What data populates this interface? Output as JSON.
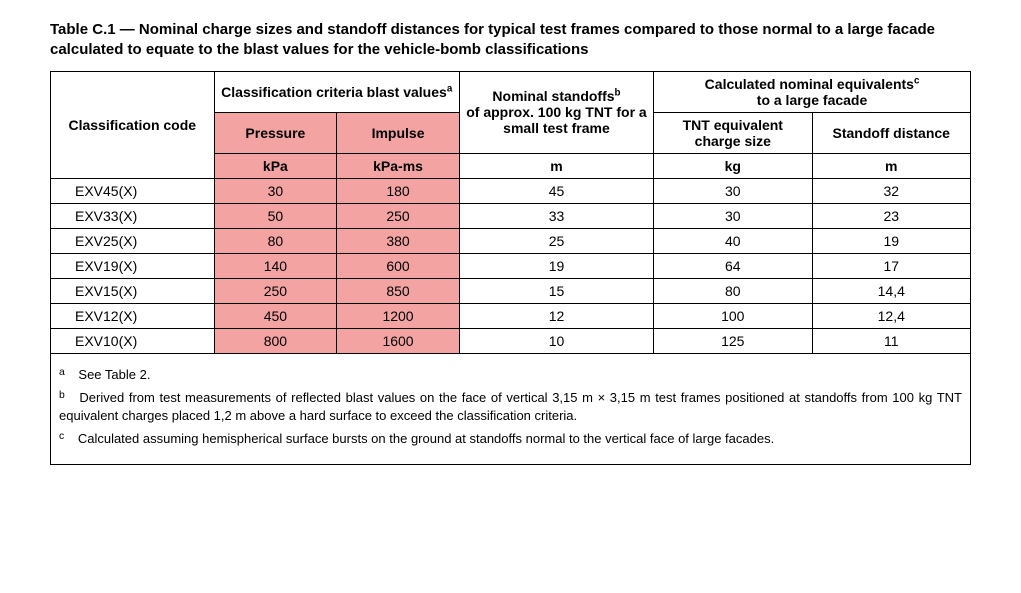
{
  "title": "Table C.1 — Nominal charge sizes and standoff distances for typical test frames compared to those normal to a large facade calculated to equate to the blast values for the vehicle-bomb classifications",
  "headers": {
    "classification_code": "Classification code",
    "criteria_group": "Classification criteria blast values",
    "criteria_sup": "a",
    "pressure": "Pressure",
    "impulse": "Impulse",
    "nominal_standoffs_l1": "Nominal standoffs",
    "nominal_standoffs_sup": "b",
    "nominal_standoffs_l2": "of approx. 100 kg TNT for a small test frame",
    "calc_equiv_group": "Calculated nominal equivalents",
    "calc_equiv_sup": "c",
    "calc_equiv_group_l2": "to a large facade",
    "tnt_equiv": "TNT equivalent charge size",
    "standoff_distance": "Standoff distance"
  },
  "units": {
    "pressure": "kPa",
    "impulse": "kPa-ms",
    "standoff": "m",
    "tnt": "kg",
    "dist": "m"
  },
  "rows": [
    {
      "code": "EXV45(X)",
      "pressure": "30",
      "impulse": "180",
      "standoff": "45",
      "tnt": "30",
      "dist": "32"
    },
    {
      "code": "EXV33(X)",
      "pressure": "50",
      "impulse": "250",
      "standoff": "33",
      "tnt": "30",
      "dist": "23"
    },
    {
      "code": "EXV25(X)",
      "pressure": "80",
      "impulse": "380",
      "standoff": "25",
      "tnt": "40",
      "dist": "19"
    },
    {
      "code": "EXV19(X)",
      "pressure": "140",
      "impulse": "600",
      "standoff": "19",
      "tnt": "64",
      "dist": "17"
    },
    {
      "code": "EXV15(X)",
      "pressure": "250",
      "impulse": "850",
      "standoff": "15",
      "tnt": "80",
      "dist": "14,4"
    },
    {
      "code": "EXV12(X)",
      "pressure": "450",
      "impulse": "1200",
      "standoff": "12",
      "tnt": "100",
      "dist": "12,4"
    },
    {
      "code": "EXV10(X)",
      "pressure": "800",
      "impulse": "1600",
      "standoff": "10",
      "tnt": "125",
      "dist": "11"
    }
  ],
  "footnotes": {
    "a": {
      "mark": "a",
      "text": "See Table 2."
    },
    "b": {
      "mark": "b",
      "text": "Derived from test measurements of reflected blast values on the face of vertical 3,15 m × 3,15 m test frames positioned at standoffs from 100 kg TNT equivalent charges placed 1,2 m above a hard surface to exceed the classification criteria."
    },
    "c": {
      "mark": "c",
      "text": "Calculated assuming hemispherical surface bursts on the ground at standoffs normal to the vertical face of large facades."
    }
  },
  "colors": {
    "highlight": "#f4a3a3",
    "border": "#000000",
    "text": "#000000",
    "background": "#ffffff"
  }
}
